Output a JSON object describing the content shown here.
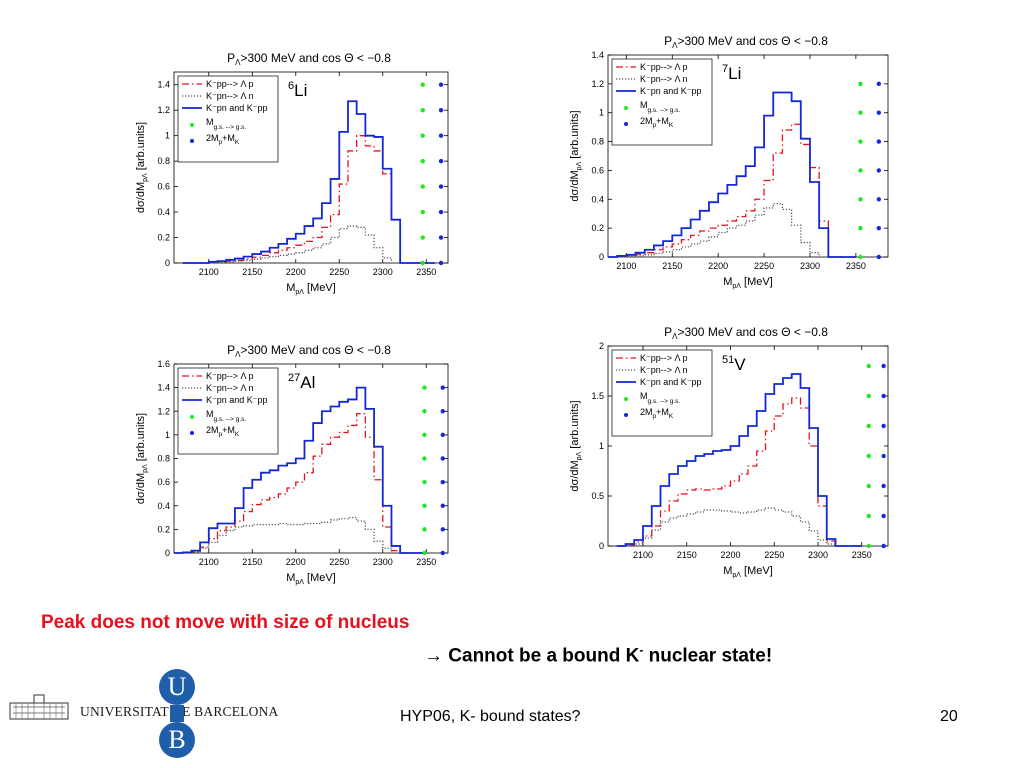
{
  "slide": {
    "peak_text": "Peak does not move with size of nucleus",
    "conclusion_arrow": "→",
    "conclusion_pre": "Cannot be a bound K",
    "conclusion_sup": "-",
    "conclusion_post": " nuclear state!",
    "footer_title": "HYP06, K- bound states?",
    "page_number": "20",
    "university_name": "UNIVERSITAT DE BARCELONA",
    "logo_letters": {
      "top": "U",
      "bottom": "B"
    }
  },
  "colors": {
    "red": "#e8101e",
    "blue": "#1228d8",
    "gray": "#555555",
    "green": "#1ee81e",
    "dot_blue": "#1428dc"
  },
  "chart_data": [
    {
      "id": "li6",
      "type": "line",
      "title": "P_Λ>300 MeV and cos Θ < −0.8",
      "nucleus": {
        "mass": "6",
        "symbol": "Li"
      },
      "xlabel": "M_pΛ [MeV]",
      "ylabel": "dσ/dM_pΛ [arb.units]",
      "xlim": [
        2060,
        2375
      ],
      "ylim": [
        0,
        1.5
      ],
      "xticks": [
        2100,
        2150,
        2200,
        2250,
        2300,
        2350
      ],
      "yticks": [
        0,
        0.2,
        0.4,
        0.6,
        0.8,
        1,
        1.2,
        1.4
      ],
      "legend": [
        "K⁻pp--> Λ p",
        "K⁻pn--> Λ n",
        "K⁻pn and K⁻pp",
        "M g.s. --> g.s.",
        "2M p +M K"
      ],
      "legend_position": "top-left",
      "grid": false,
      "x": [
        2070,
        2080,
        2090,
        2100,
        2110,
        2120,
        2130,
        2140,
        2150,
        2160,
        2170,
        2180,
        2190,
        2200,
        2210,
        2220,
        2230,
        2240,
        2250,
        2260,
        2270,
        2280,
        2290,
        2300,
        2310,
        2320,
        2330,
        2340,
        2350
      ],
      "series": [
        {
          "name": "K⁻pp--> Λ p",
          "style": "dashdot",
          "color": "#e8101e",
          "values": [
            0,
            0,
            0,
            0.005,
            0.01,
            0.015,
            0.02,
            0.03,
            0.045,
            0.06,
            0.08,
            0.1,
            0.12,
            0.14,
            0.17,
            0.2,
            0.28,
            0.38,
            0.62,
            0.88,
            1.0,
            0.92,
            0.88,
            0.7,
            0.34,
            0,
            0,
            0,
            0
          ]
        },
        {
          "name": "K⁻pn--> Λ n",
          "style": "dotted",
          "color": "#555555",
          "values": [
            0,
            0,
            0,
            0.003,
            0.005,
            0.01,
            0.015,
            0.02,
            0.03,
            0.04,
            0.05,
            0.06,
            0.07,
            0.08,
            0.1,
            0.12,
            0.15,
            0.2,
            0.27,
            0.29,
            0.28,
            0.22,
            0.12,
            0.04,
            0,
            0,
            0,
            0,
            0
          ]
        },
        {
          "name": "K⁻pn and K⁻pp",
          "style": "solid",
          "color": "#1228d8",
          "values": [
            0,
            0,
            0,
            0.01,
            0.015,
            0.025,
            0.035,
            0.05,
            0.07,
            0.09,
            0.12,
            0.15,
            0.19,
            0.23,
            0.29,
            0.35,
            0.47,
            0.66,
            1.03,
            1.27,
            1.17,
            1.0,
            0.99,
            0.74,
            0.34,
            0,
            0,
            0,
            0
          ]
        }
      ],
      "dots": {
        "green_x": 2346,
        "blue_x": 2367,
        "y": [
          0,
          0.2,
          0.4,
          0.6,
          0.8,
          1.0,
          1.2,
          1.4
        ]
      }
    },
    {
      "id": "li7",
      "type": "line",
      "title": "P_Λ>300 MeV and cos Θ < −0.8",
      "nucleus": {
        "mass": "7",
        "symbol": "Li"
      },
      "xlabel": "M_pΛ [MeV]",
      "ylabel": "dσ/dM_pΛ [arb.units]",
      "xlim": [
        2080,
        2385
      ],
      "ylim": [
        0,
        1.4
      ],
      "xticks": [
        2100,
        2150,
        2200,
        2250,
        2300,
        2350
      ],
      "yticks": [
        0,
        0.2,
        0.4,
        0.6,
        0.8,
        1,
        1.2,
        1.4
      ],
      "legend": [
        "K⁻pp--> Λ p",
        "K⁻pn--> Λ n",
        "K⁻pn and K⁻pp",
        "M g.s. --> g.s.",
        "2M p +M K"
      ],
      "legend_position": "top-left",
      "grid": false,
      "x": [
        2080,
        2090,
        2100,
        2110,
        2120,
        2130,
        2140,
        2150,
        2160,
        2170,
        2180,
        2190,
        2200,
        2210,
        2220,
        2230,
        2240,
        2250,
        2260,
        2270,
        2280,
        2290,
        2300,
        2310,
        2320,
        2330,
        2340
      ],
      "series": [
        {
          "name": "K⁻pp--> Λ p",
          "style": "dashdot",
          "color": "#e8101e",
          "values": [
            0,
            0.005,
            0.01,
            0.02,
            0.03,
            0.05,
            0.07,
            0.09,
            0.12,
            0.15,
            0.18,
            0.2,
            0.22,
            0.25,
            0.28,
            0.32,
            0.4,
            0.53,
            0.72,
            0.88,
            0.92,
            0.78,
            0.62,
            0.25,
            0,
            0,
            0
          ]
        },
        {
          "name": "K⁻pn--> Λ n",
          "style": "dotted",
          "color": "#555555",
          "values": [
            0,
            0.003,
            0.005,
            0.01,
            0.015,
            0.025,
            0.035,
            0.05,
            0.07,
            0.09,
            0.11,
            0.14,
            0.17,
            0.2,
            0.22,
            0.25,
            0.29,
            0.34,
            0.37,
            0.33,
            0.22,
            0.1,
            0.03,
            0,
            0,
            0,
            0
          ]
        },
        {
          "name": "K⁻pn and K⁻pp",
          "style": "solid",
          "color": "#1228d8",
          "values": [
            0,
            0.008,
            0.015,
            0.03,
            0.05,
            0.08,
            0.11,
            0.15,
            0.2,
            0.26,
            0.32,
            0.38,
            0.44,
            0.5,
            0.56,
            0.63,
            0.76,
            0.98,
            1.14,
            1.14,
            1.08,
            0.82,
            0.52,
            0.2,
            0,
            0,
            0
          ]
        }
      ],
      "dots": {
        "green_x": 2355,
        "blue_x": 2375,
        "y": [
          0,
          0.2,
          0.4,
          0.6,
          0.8,
          1.0,
          1.2
        ]
      }
    },
    {
      "id": "al27",
      "type": "line",
      "title": "P_Λ>300 MeV and cos Θ < −0.8",
      "nucleus": {
        "mass": "27",
        "symbol": "Al"
      },
      "xlabel": "M_pΛ [MeV]",
      "ylabel": "dσ/dM_pΛ [arb.units]",
      "xlim": [
        2060,
        2375
      ],
      "ylim": [
        0,
        1.6
      ],
      "xticks": [
        2100,
        2150,
        2200,
        2250,
        2300,
        2350
      ],
      "yticks": [
        0,
        0.2,
        0.4,
        0.6,
        0.8,
        1,
        1.2,
        1.4,
        1.6
      ],
      "legend": [
        "K⁻pp--> Λ p",
        "K⁻pn--> Λ n",
        "K⁻pn and K⁻pp",
        "M g.s. --> g.s.",
        "2M p +M K"
      ],
      "legend_position": "top-left",
      "grid": false,
      "x": [
        2060,
        2070,
        2080,
        2090,
        2100,
        2110,
        2120,
        2130,
        2140,
        2150,
        2160,
        2170,
        2180,
        2190,
        2200,
        2210,
        2220,
        2230,
        2240,
        2250,
        2260,
        2270,
        2280,
        2290,
        2300,
        2310,
        2320,
        2330,
        2340
      ],
      "series": [
        {
          "name": "K⁻pp--> Λ p",
          "style": "dashdot",
          "color": "#e8101e",
          "values": [
            0,
            0,
            0.01,
            0.05,
            0.12,
            0.19,
            0.22,
            0.27,
            0.35,
            0.41,
            0.45,
            0.47,
            0.5,
            0.55,
            0.6,
            0.68,
            0.82,
            0.92,
            0.98,
            1.02,
            1.08,
            1.18,
            0.98,
            0.62,
            0.22,
            0.02,
            0,
            0,
            0
          ]
        },
        {
          "name": "K⁻pn--> Λ n",
          "style": "dotted",
          "color": "#555555",
          "values": [
            0,
            0,
            0.005,
            0.04,
            0.09,
            0.15,
            0.19,
            0.22,
            0.23,
            0.24,
            0.24,
            0.24,
            0.25,
            0.24,
            0.24,
            0.25,
            0.25,
            0.26,
            0.28,
            0.29,
            0.3,
            0.27,
            0.2,
            0.1,
            0.04,
            0,
            0,
            0,
            0
          ]
        },
        {
          "name": "K⁻pn and K⁻pp",
          "style": "solid",
          "color": "#1228d8",
          "values": [
            0,
            0.005,
            0.02,
            0.09,
            0.21,
            0.25,
            0.25,
            0.38,
            0.55,
            0.62,
            0.68,
            0.7,
            0.74,
            0.76,
            0.8,
            0.95,
            1.1,
            1.2,
            1.24,
            1.28,
            1.3,
            1.4,
            1.22,
            0.9,
            0.4,
            0.06,
            0,
            0,
            0
          ]
        }
      ],
      "dots": {
        "green_x": 2348,
        "blue_x": 2369,
        "y": [
          0,
          0.2,
          0.4,
          0.6,
          0.8,
          1.0,
          1.2,
          1.4
        ]
      }
    },
    {
      "id": "v51",
      "type": "line",
      "title": "P_Λ>300 MeV and cos Θ < −0.8",
      "nucleus": {
        "mass": "51",
        "symbol": "V"
      },
      "xlabel": "M_pΛ [MeV]",
      "ylabel": "dσ/dM_pΛ [arb.units]",
      "xlim": [
        2060,
        2380
      ],
      "ylim": [
        0,
        2
      ],
      "xticks": [
        2100,
        2150,
        2200,
        2250,
        2300,
        2350
      ],
      "yticks": [
        0,
        0.5,
        1,
        1.5,
        2
      ],
      "legend": [
        "K⁻pp--> Λ p",
        "K⁻pn--> Λ n",
        "K⁻pn and K⁻pp",
        "M g.s. --> g.s.",
        "2M p +M K"
      ],
      "legend_position": "top-left",
      "grid": false,
      "x": [
        2070,
        2080,
        2090,
        2100,
        2110,
        2120,
        2130,
        2140,
        2150,
        2160,
        2170,
        2180,
        2190,
        2200,
        2210,
        2220,
        2230,
        2240,
        2250,
        2260,
        2270,
        2280,
        2290,
        2300,
        2310,
        2320,
        2330,
        2340
      ],
      "series": [
        {
          "name": "K⁻pp--> Λ p",
          "style": "dashdot",
          "color": "#e8101e",
          "values": [
            0,
            0.01,
            0.04,
            0.1,
            0.2,
            0.35,
            0.45,
            0.52,
            0.56,
            0.57,
            0.56,
            0.57,
            0.6,
            0.65,
            0.72,
            0.8,
            0.95,
            1.15,
            1.3,
            1.42,
            1.48,
            1.38,
            1.0,
            0.4,
            0.05,
            0,
            0,
            0
          ]
        },
        {
          "name": "K⁻pn--> Λ n",
          "style": "dotted",
          "color": "#555555",
          "values": [
            0,
            0.005,
            0.02,
            0.08,
            0.16,
            0.24,
            0.28,
            0.3,
            0.32,
            0.34,
            0.36,
            0.36,
            0.35,
            0.34,
            0.33,
            0.34,
            0.36,
            0.38,
            0.36,
            0.34,
            0.3,
            0.24,
            0.15,
            0.06,
            0.02,
            0,
            0,
            0
          ]
        },
        {
          "name": "K⁻pn and K⁻pp",
          "style": "solid",
          "color": "#1228d8",
          "values": [
            0,
            0.02,
            0.06,
            0.2,
            0.4,
            0.6,
            0.72,
            0.8,
            0.85,
            0.9,
            0.92,
            0.95,
            0.96,
            1.0,
            1.1,
            1.2,
            1.35,
            1.52,
            1.62,
            1.68,
            1.72,
            1.58,
            1.18,
            0.5,
            0.07,
            0,
            0,
            0
          ]
        }
      ],
      "dots": {
        "green_x": 2358,
        "blue_x": 2375,
        "y": [
          0,
          0.3,
          0.6,
          0.9,
          1.2,
          1.5,
          1.8
        ]
      }
    }
  ]
}
